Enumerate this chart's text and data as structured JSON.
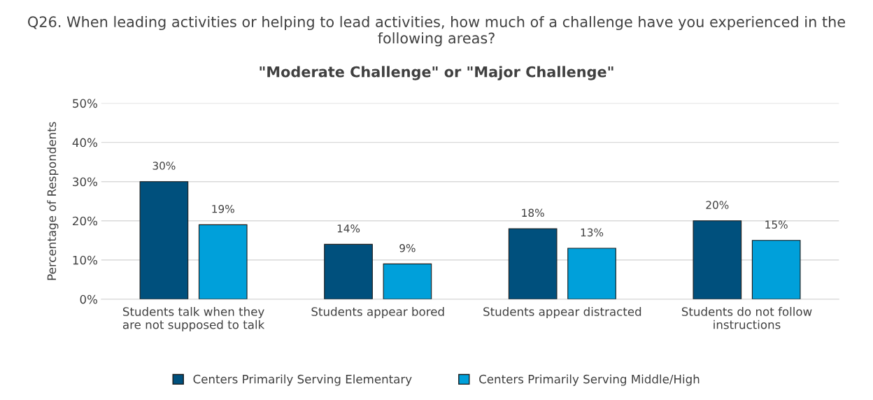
{
  "chart_data": {
    "type": "bar",
    "title": "Q26. When leading activities or helping to lead activities, how much of a challenge have you experienced in the following areas?",
    "subtitle": "\"Moderate Challenge\" or \"Major Challenge\"",
    "ylabel": "Percentage of Respondents",
    "categories": [
      "Students talk when they are not supposed to talk",
      "Students appear bored",
      "Students appear distracted",
      "Students do not follow instructions"
    ],
    "series": [
      {
        "name": "Centers Primarily Serving Elementary",
        "color": "#00507d",
        "values": [
          30,
          14,
          18,
          20
        ]
      },
      {
        "name": "Centers Primarily Serving Middle/High",
        "color": "#00a0da",
        "values": [
          19,
          9,
          13,
          15
        ]
      }
    ],
    "ylim": [
      0,
      50
    ],
    "yticks": [
      {
        "value": 0,
        "label": "0%"
      },
      {
        "value": 10,
        "label": "10%"
      },
      {
        "value": 20,
        "label": "20%"
      },
      {
        "value": 30,
        "label": "30%"
      },
      {
        "value": 40,
        "label": "40%"
      },
      {
        "value": 50,
        "label": "50%"
      }
    ],
    "grid": "y",
    "legend": "bottom",
    "value_labels": [
      [
        "30%",
        "14%",
        "18%",
        "20%"
      ],
      [
        "19%",
        "9%",
        "13%",
        "15%"
      ]
    ]
  }
}
